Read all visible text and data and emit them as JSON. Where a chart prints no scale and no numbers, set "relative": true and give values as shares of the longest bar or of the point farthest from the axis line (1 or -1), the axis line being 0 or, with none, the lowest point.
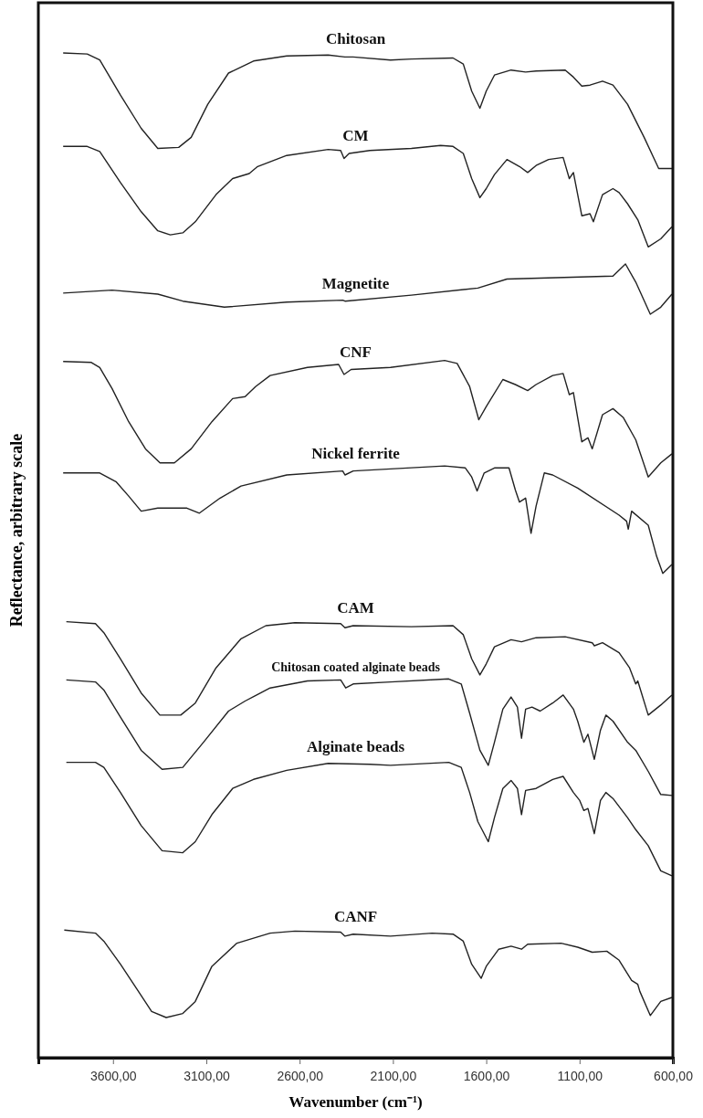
{
  "chart_data": {
    "type": "line",
    "relative": true,
    "xlabel": "Wavenumber (cm⁻¹)",
    "ylabel": "Reflectance, arbitrary scale",
    "legend": false,
    "grid": false,
    "marker": "none",
    "line_style": "solid",
    "tick_labels": "x",
    "xlim": [
      4000,
      600
    ],
    "xticks": [
      {
        "value": 3600,
        "label": "3600,00"
      },
      {
        "value": 3100,
        "label": "3100,00"
      },
      {
        "value": 2600,
        "label": "2600,00"
      },
      {
        "value": 2100,
        "label": "2100,00"
      },
      {
        "value": 1600,
        "label": "1600,00"
      },
      {
        "value": 1100,
        "label": "1100,00"
      },
      {
        "value": 600,
        "label": "600,00"
      }
    ],
    "series": [
      {
        "name": "Chitosan",
        "color": "#222222",
        "x": [
          3867,
          3738,
          3671,
          3560,
          3449,
          3360,
          3248,
          3181,
          3092,
          2981,
          2847,
          2669,
          2447,
          2357,
          2313,
          2113,
          2001,
          1778,
          1723,
          1678,
          1634,
          1600,
          1556,
          1467,
          1389,
          1333,
          1177,
          1133,
          1088,
          1044,
          977,
          921,
          843,
          754,
          676,
          605
        ],
        "values": [
          1.0,
          0.999,
          0.993,
          0.958,
          0.925,
          0.905,
          0.906,
          0.916,
          0.949,
          0.98,
          0.992,
          0.997,
          0.998,
          0.996,
          0.996,
          0.993,
          0.994,
          0.995,
          0.989,
          0.962,
          0.945,
          0.962,
          0.978,
          0.983,
          0.981,
          0.982,
          0.983,
          0.976,
          0.967,
          0.968,
          0.972,
          0.968,
          0.949,
          0.916,
          0.885,
          0.885
        ]
      },
      {
        "name": "CM",
        "color": "#222222",
        "x": [
          3867,
          3738,
          3671,
          3560,
          3449,
          3360,
          3293,
          3226,
          3159,
          3048,
          2959,
          2870,
          2825,
          2669,
          2447,
          2380,
          2362,
          2335,
          2224,
          2001,
          1845,
          1778,
          1723,
          1678,
          1634,
          1600,
          1556,
          1489,
          1422,
          1378,
          1333,
          1266,
          1188,
          1155,
          1133,
          1088,
          1044,
          1026,
          977,
          921,
          888,
          843,
          788,
          732,
          665,
          605
        ],
        "values": [
          0.907,
          0.907,
          0.902,
          0.871,
          0.842,
          0.823,
          0.819,
          0.821,
          0.832,
          0.859,
          0.875,
          0.88,
          0.887,
          0.898,
          0.904,
          0.903,
          0.895,
          0.9,
          0.903,
          0.905,
          0.908,
          0.907,
          0.9,
          0.875,
          0.856,
          0.865,
          0.879,
          0.894,
          0.887,
          0.881,
          0.888,
          0.894,
          0.896,
          0.875,
          0.881,
          0.838,
          0.84,
          0.832,
          0.859,
          0.865,
          0.861,
          0.85,
          0.834,
          0.807,
          0.815,
          0.827
        ]
      },
      {
        "name": "Magnetite",
        "color": "#222222",
        "x": [
          3867,
          3605,
          3360,
          3226,
          3003,
          2669,
          2369,
          2357,
          2001,
          1645,
          1489,
          921,
          854,
          799,
          721,
          665,
          605
        ],
        "values": [
          0.761,
          0.764,
          0.76,
          0.753,
          0.747,
          0.752,
          0.754,
          0.753,
          0.759,
          0.766,
          0.775,
          0.778,
          0.79,
          0.772,
          0.74,
          0.747,
          0.76
        ]
      },
      {
        "name": "CNF",
        "color": "#222222",
        "x": [
          3867,
          3716,
          3671,
          3605,
          3516,
          3426,
          3348,
          3271,
          3181,
          3070,
          2959,
          2892,
          2836,
          2758,
          2558,
          2391,
          2362,
          2324,
          2113,
          1823,
          1756,
          1689,
          1640,
          1600,
          1511,
          1444,
          1378,
          1333,
          1244,
          1188,
          1155,
          1133,
          1088,
          1055,
          1032,
          977,
          921,
          865,
          799,
          732,
          665,
          605
        ],
        "values": [
          0.693,
          0.692,
          0.687,
          0.666,
          0.633,
          0.606,
          0.592,
          0.592,
          0.606,
          0.633,
          0.656,
          0.658,
          0.668,
          0.679,
          0.687,
          0.69,
          0.68,
          0.685,
          0.687,
          0.694,
          0.691,
          0.668,
          0.635,
          0.648,
          0.675,
          0.67,
          0.664,
          0.67,
          0.679,
          0.681,
          0.66,
          0.662,
          0.613,
          0.617,
          0.606,
          0.64,
          0.646,
          0.637,
          0.615,
          0.578,
          0.592,
          0.601
        ]
      },
      {
        "name": "Nickel ferrite",
        "color": "#222222",
        "x": [
          3867,
          3671,
          3582,
          3516,
          3449,
          3360,
          3204,
          3137,
          3026,
          2914,
          2669,
          2369,
          2357,
          2313,
          1823,
          1712,
          1678,
          1649,
          1611,
          1556,
          1478,
          1444,
          1422,
          1389,
          1360,
          1333,
          1289,
          1244,
          1110,
          888,
          848,
          839,
          821,
          732,
          687,
          654,
          605
        ],
        "values": [
          0.582,
          0.582,
          0.573,
          0.559,
          0.544,
          0.547,
          0.547,
          0.542,
          0.557,
          0.569,
          0.58,
          0.584,
          0.58,
          0.584,
          0.589,
          0.587,
          0.578,
          0.564,
          0.582,
          0.587,
          0.587,
          0.565,
          0.553,
          0.557,
          0.522,
          0.549,
          0.582,
          0.58,
          0.567,
          0.54,
          0.534,
          0.526,
          0.544,
          0.53,
          0.499,
          0.482,
          0.491
        ]
      },
      {
        "name": "CAM",
        "color": "#222222",
        "x": [
          3850,
          3694,
          3649,
          3560,
          3449,
          3349,
          3237,
          3159,
          3048,
          2914,
          2781,
          2625,
          2380,
          2357,
          2313,
          2001,
          1778,
          1723,
          1678,
          1634,
          1600,
          1556,
          1467,
          1411,
          1333,
          1177,
          1032,
          1021,
          977,
          888,
          832,
          799,
          788,
          732,
          665,
          605
        ],
        "values": [
          0.434,
          0.432,
          0.423,
          0.397,
          0.363,
          0.341,
          0.341,
          0.353,
          0.388,
          0.417,
          0.43,
          0.433,
          0.432,
          0.428,
          0.43,
          0.429,
          0.43,
          0.421,
          0.397,
          0.381,
          0.392,
          0.409,
          0.416,
          0.414,
          0.418,
          0.419,
          0.413,
          0.41,
          0.413,
          0.403,
          0.388,
          0.372,
          0.375,
          0.341,
          0.351,
          0.361
        ]
      },
      {
        "name": "Chitosan coated alginate beads",
        "color": "#222222",
        "x": [
          3850,
          3694,
          3649,
          3560,
          3449,
          3337,
          3226,
          3115,
          2981,
          2892,
          2758,
          2558,
          2380,
          2353,
          2313,
          2113,
          1801,
          1734,
          1689,
          1634,
          1589,
          1556,
          1511,
          1467,
          1433,
          1411,
          1389,
          1355,
          1311,
          1244,
          1188,
          1133,
          1110,
          1077,
          1055,
          1021,
          988,
          959,
          921,
          843,
          799,
          732,
          665,
          605
        ],
        "values": [
          0.376,
          0.374,
          0.366,
          0.339,
          0.306,
          0.287,
          0.289,
          0.314,
          0.345,
          0.355,
          0.368,
          0.375,
          0.376,
          0.368,
          0.372,
          0.374,
          0.377,
          0.372,
          0.343,
          0.306,
          0.291,
          0.314,
          0.347,
          0.359,
          0.349,
          0.318,
          0.347,
          0.349,
          0.345,
          0.353,
          0.361,
          0.347,
          0.335,
          0.314,
          0.322,
          0.297,
          0.326,
          0.341,
          0.335,
          0.314,
          0.306,
          0.285,
          0.262,
          0.261
        ]
      },
      {
        "name": "Alginate beads",
        "color": "#222222",
        "x": [
          3850,
          3694,
          3649,
          3560,
          3449,
          3337,
          3226,
          3159,
          3070,
          2959,
          2847,
          2669,
          2447,
          2224,
          2113,
          1801,
          1734,
          1689,
          1645,
          1589,
          1556,
          1511,
          1467,
          1433,
          1411,
          1389,
          1333,
          1244,
          1188,
          1133,
          1099,
          1077,
          1055,
          1021,
          988,
          959,
          921,
          843,
          799,
          732,
          665,
          605
        ],
        "values": [
          0.294,
          0.294,
          0.289,
          0.264,
          0.231,
          0.206,
          0.204,
          0.215,
          0.242,
          0.268,
          0.277,
          0.286,
          0.293,
          0.292,
          0.291,
          0.294,
          0.289,
          0.264,
          0.235,
          0.215,
          0.239,
          0.268,
          0.276,
          0.268,
          0.242,
          0.266,
          0.268,
          0.277,
          0.28,
          0.264,
          0.256,
          0.246,
          0.248,
          0.223,
          0.256,
          0.264,
          0.258,
          0.239,
          0.227,
          0.211,
          0.186,
          0.181
        ]
      },
      {
        "name": "CANF",
        "color": "#222222",
        "x": [
          3861,
          3694,
          3649,
          3560,
          3471,
          3393,
          3315,
          3226,
          3159,
          3070,
          2936,
          2758,
          2625,
          2380,
          2357,
          2313,
          2113,
          1890,
          1778,
          1723,
          1678,
          1627,
          1600,
          1533,
          1467,
          1411,
          1378,
          1199,
          1110,
          1032,
          954,
          888,
          821,
          788,
          777,
          721,
          665,
          605
        ],
        "values": [
          0.127,
          0.124,
          0.116,
          0.093,
          0.068,
          0.046,
          0.04,
          0.044,
          0.056,
          0.091,
          0.114,
          0.124,
          0.126,
          0.125,
          0.121,
          0.123,
          0.121,
          0.124,
          0.123,
          0.116,
          0.093,
          0.079,
          0.091,
          0.108,
          0.111,
          0.108,
          0.113,
          0.114,
          0.11,
          0.105,
          0.106,
          0.097,
          0.077,
          0.073,
          0.066,
          0.042,
          0.056,
          0.06
        ]
      }
    ]
  }
}
